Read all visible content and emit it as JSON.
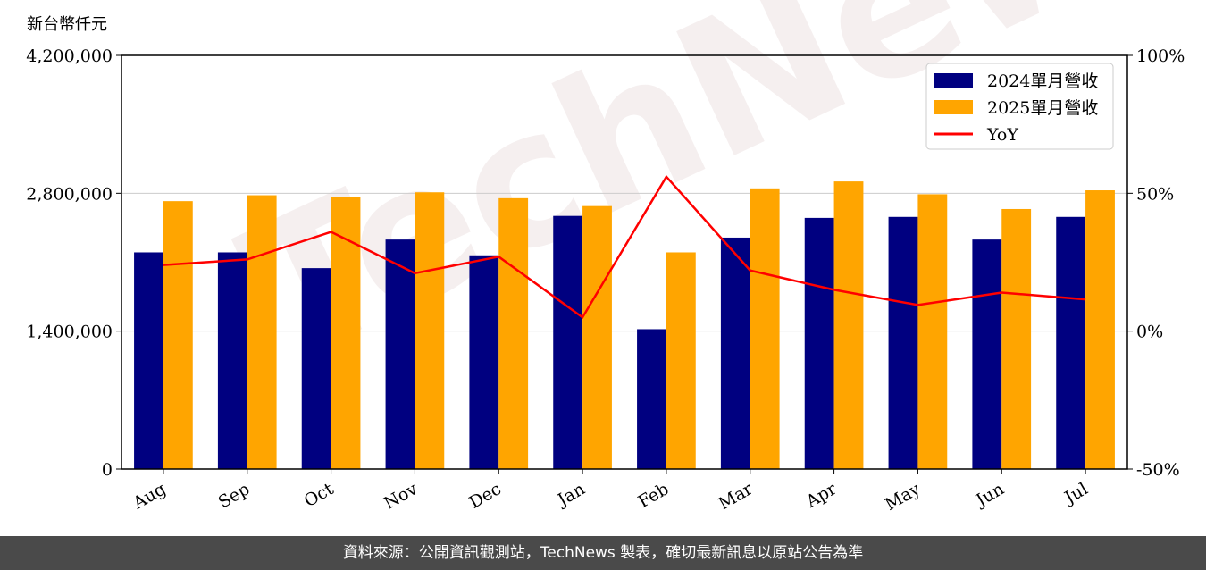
{
  "chart_data": {
    "type": "bar",
    "categories": [
      "Aug",
      "Sep",
      "Oct",
      "Nov",
      "Dec",
      "Jan",
      "Feb",
      "Mar",
      "Apr",
      "May",
      "Jun",
      "Jul"
    ],
    "series": [
      {
        "name": "2024單月營收",
        "type": "bar",
        "axis": "left",
        "color": "#000080",
        "values": [
          2200000,
          2200000,
          2040000,
          2330000,
          2170000,
          2570000,
          1420000,
          2350000,
          2550000,
          2560000,
          2330000,
          2560000
        ]
      },
      {
        "name": "2025單月營收",
        "type": "bar",
        "axis": "left",
        "color": "#FFA500",
        "values": [
          2720000,
          2780000,
          2760000,
          2810000,
          2750000,
          2670000,
          2200000,
          2850000,
          2920000,
          2790000,
          2640000,
          2830000
        ]
      },
      {
        "name": "YoY",
        "type": "line",
        "axis": "right",
        "color": "#FF0000",
        "values": [
          24,
          26,
          36,
          21,
          27,
          5,
          56,
          22,
          15,
          9.5,
          14,
          11.5
        ]
      }
    ],
    "ylabel": "新台幣仟元",
    "ylim": [
      0,
      4200000
    ],
    "y_ticks": [
      "0",
      "1,400,000",
      "2,800,000",
      "4,200,000"
    ],
    "y2lim": [
      -50,
      100
    ],
    "y2_ticks": [
      "-50%",
      "0%",
      "50%",
      "100%"
    ],
    "grid": true,
    "legend_position": "top-right"
  },
  "watermark": "TechNews",
  "footer": {
    "text": "資料來源：公開資訊觀測站，TechNews 製表，確切最新訊息以原站公告為準"
  },
  "colors": {
    "bar2024": "#000080",
    "bar2025": "#FFA500",
    "yoy": "#FF0000",
    "footer_bg": "#4a4a4a"
  }
}
